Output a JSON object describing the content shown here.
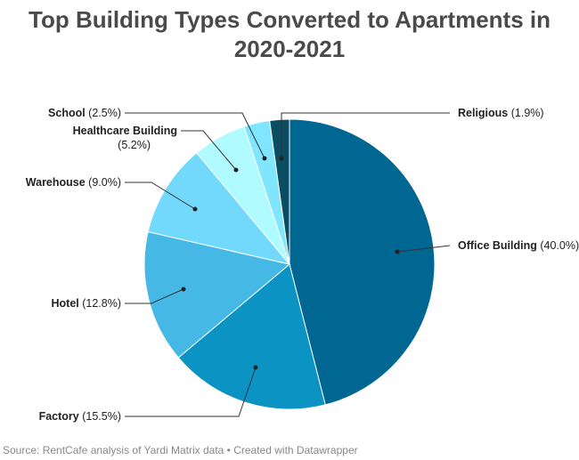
{
  "chart_data": {
    "type": "pie",
    "title": "Top Building Types Converted to Apartments in 2020-2021",
    "slices": [
      {
        "label": "Office Building",
        "value": 40.0,
        "display": "(40.0%)",
        "color": "#006692"
      },
      {
        "label": "Factory",
        "value": 15.5,
        "display": "(15.5%)",
        "color": "#0a93c3"
      },
      {
        "label": "Hotel",
        "value": 12.8,
        "display": "(12.8%)",
        "color": "#45b8e6"
      },
      {
        "label": "Warehouse",
        "value": 9.0,
        "display": "(9.0%)",
        "color": "#72d8fc"
      },
      {
        "label": "Healthcare Building",
        "value": 5.2,
        "display": "(5.2%)",
        "color": "#b0fbff"
      },
      {
        "label": "School",
        "value": 2.5,
        "display": "(2.5%)",
        "color": "#80e6ff"
      },
      {
        "label": "Religious",
        "value": 1.9,
        "display": "(1.9%)",
        "color": "#0b4d62"
      }
    ],
    "source": "Source: RentCafe analysis of Yardi Matrix data • Created with Datawrapper"
  }
}
